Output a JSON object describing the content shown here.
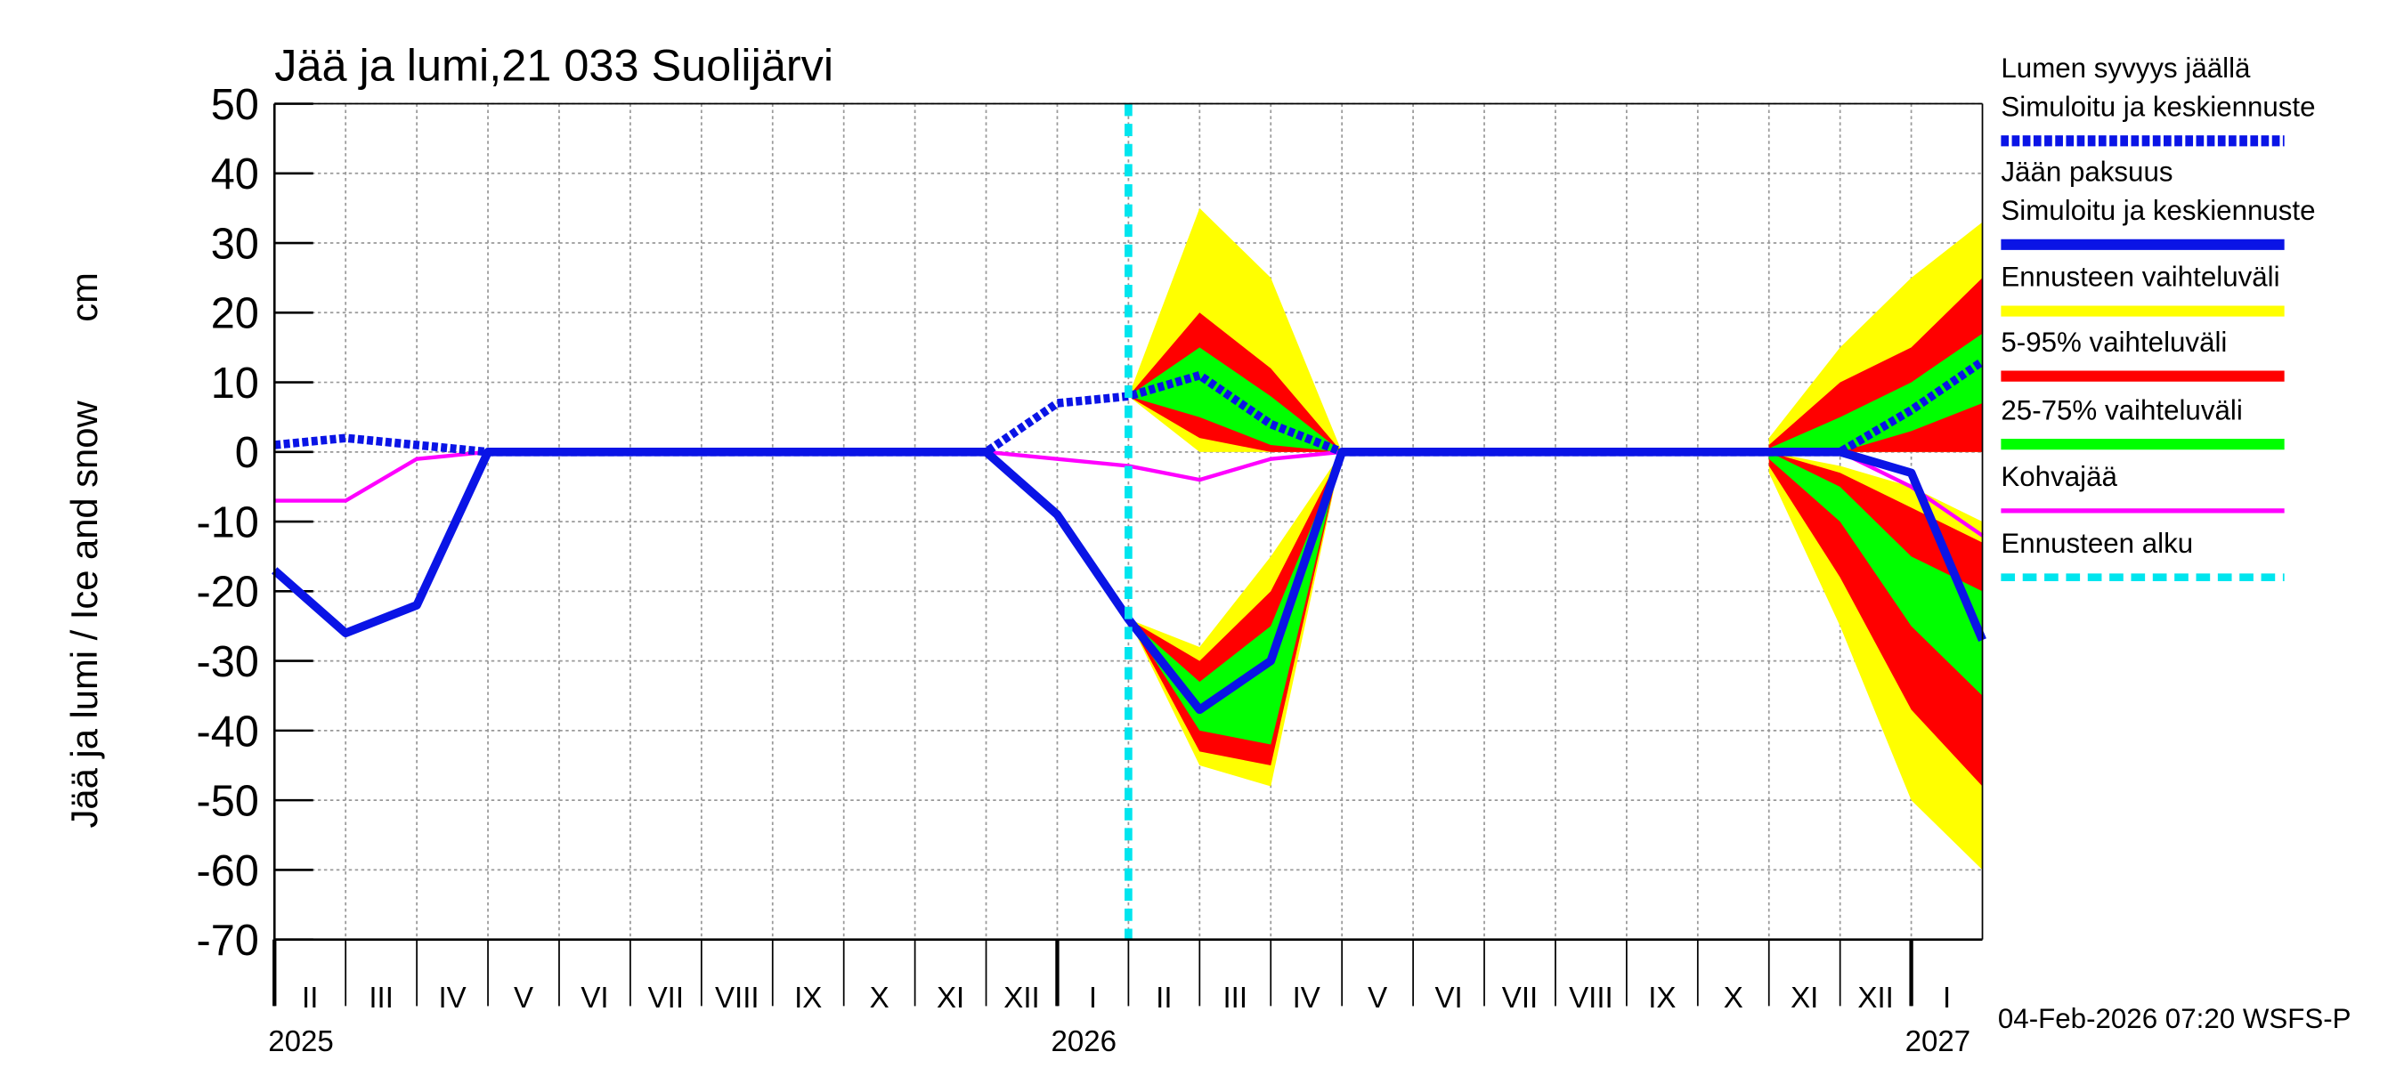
{
  "chart_data": {
    "type": "line",
    "title": "Jää ja lumi,21 033 Suolijärvi",
    "ylabel": "Jää ja lumi / Ice and snow",
    "yunit": "cm",
    "footer": "04-Feb-2026 07:20 WSFS-P",
    "x": [
      "2025-02",
      "2025-03",
      "2025-04",
      "2025-05",
      "2025-06",
      "2025-07",
      "2025-08",
      "2025-09",
      "2025-10",
      "2025-11",
      "2025-12",
      "2026-01",
      "2026-02",
      "2026-03",
      "2026-04",
      "2026-05",
      "2026-06",
      "2026-07",
      "2026-08",
      "2026-09",
      "2026-10",
      "2026-11",
      "2026-12",
      "2027-01",
      "2027-02"
    ],
    "xlim": [
      "2025-02",
      "2027-02"
    ],
    "month_labels": [
      "II",
      "III",
      "IV",
      "V",
      "VI",
      "VII",
      "VIII",
      "IX",
      "X",
      "XI",
      "XII",
      "I",
      "II",
      "III",
      "IV",
      "V",
      "VI",
      "VII",
      "VIII",
      "IX",
      "X",
      "XI",
      "XII",
      "I"
    ],
    "xticks": [
      {
        "value": "2025-02",
        "label": "2025"
      },
      {
        "value": "2026-01",
        "label": "2026"
      },
      {
        "value": "2027-01",
        "label": "2027"
      }
    ],
    "ylim": [
      -70,
      50
    ],
    "yticks": [
      -70,
      -60,
      -50,
      -40,
      -30,
      -20,
      -10,
      0,
      10,
      20,
      30,
      40,
      50
    ],
    "grid": true,
    "series": [
      {
        "name": "Lumen syvyys jäällä",
        "note": "Simuloitu ja keskiennuste",
        "color": "#0a14e6",
        "style": "dashed",
        "values": [
          1,
          2,
          1,
          0,
          0,
          0,
          0,
          0,
          0,
          0,
          0,
          7,
          8,
          11,
          4,
          0,
          0,
          0,
          0,
          0,
          0,
          0,
          0,
          6,
          13
        ]
      },
      {
        "name": "Jään paksuus",
        "note": "Simuloitu ja keskiennuste",
        "color": "#0a14e6",
        "style": "solid",
        "values": [
          -17,
          -26,
          -22,
          0,
          0,
          0,
          0,
          0,
          0,
          0,
          0,
          -9,
          -24,
          -37,
          -30,
          0,
          0,
          0,
          0,
          0,
          0,
          0,
          0,
          -3,
          -27
        ]
      },
      {
        "name": "Kohvajää",
        "color": "#ff00ff",
        "style": "thin",
        "values": [
          -7,
          -7,
          -1,
          0,
          0,
          0,
          0,
          0,
          0,
          0,
          0,
          -1,
          -2,
          -4,
          -1,
          0,
          0,
          0,
          0,
          0,
          0,
          0,
          0,
          -5,
          -12
        ]
      }
    ],
    "bands": [
      {
        "name": "Ennusteen vaihteluväli",
        "color": "#ffff00",
        "snow_low": [
          null,
          null,
          null,
          null,
          null,
          null,
          null,
          null,
          null,
          null,
          null,
          null,
          8,
          0,
          0,
          0,
          null,
          null,
          null,
          null,
          null,
          0,
          0,
          0,
          0
        ],
        "snow_high": [
          null,
          null,
          null,
          null,
          null,
          null,
          null,
          null,
          null,
          null,
          null,
          null,
          8,
          35,
          25,
          0,
          null,
          null,
          null,
          null,
          null,
          2,
          15,
          25,
          33
        ],
        "ice_low": [
          null,
          null,
          null,
          null,
          null,
          null,
          null,
          null,
          null,
          null,
          null,
          null,
          -24,
          -45,
          -48,
          0,
          null,
          null,
          null,
          null,
          null,
          -3,
          -25,
          -50,
          -60
        ],
        "ice_high": [
          null,
          null,
          null,
          null,
          null,
          null,
          null,
          null,
          null,
          null,
          null,
          null,
          -24,
          -28,
          -15,
          0,
          null,
          null,
          null,
          null,
          null,
          0,
          -2,
          -5,
          -10
        ]
      },
      {
        "name": "5-95% vaihteluväli",
        "color": "#ff0000",
        "snow_low": [
          null,
          null,
          null,
          null,
          null,
          null,
          null,
          null,
          null,
          null,
          null,
          null,
          8,
          2,
          0,
          0,
          null,
          null,
          null,
          null,
          null,
          0,
          0,
          0,
          0
        ],
        "snow_high": [
          null,
          null,
          null,
          null,
          null,
          null,
          null,
          null,
          null,
          null,
          null,
          null,
          8,
          20,
          12,
          0,
          null,
          null,
          null,
          null,
          null,
          1,
          10,
          15,
          25
        ],
        "ice_low": [
          null,
          null,
          null,
          null,
          null,
          null,
          null,
          null,
          null,
          null,
          null,
          null,
          -24,
          -43,
          -45,
          0,
          null,
          null,
          null,
          null,
          null,
          -2,
          -18,
          -37,
          -48
        ],
        "ice_high": [
          null,
          null,
          null,
          null,
          null,
          null,
          null,
          null,
          null,
          null,
          null,
          null,
          -24,
          -30,
          -20,
          0,
          null,
          null,
          null,
          null,
          null,
          0,
          -3,
          -8,
          -13
        ]
      },
      {
        "name": "25-75% vaihteluväli",
        "color": "#00ff00",
        "snow_low": [
          null,
          null,
          null,
          null,
          null,
          null,
          null,
          null,
          null,
          null,
          null,
          null,
          8,
          5,
          1,
          0,
          null,
          null,
          null,
          null,
          null,
          0,
          0,
          3,
          7
        ],
        "snow_high": [
          null,
          null,
          null,
          null,
          null,
          null,
          null,
          null,
          null,
          null,
          null,
          null,
          8,
          15,
          8,
          0,
          null,
          null,
          null,
          null,
          null,
          0.5,
          5,
          10,
          17
        ],
        "ice_low": [
          null,
          null,
          null,
          null,
          null,
          null,
          null,
          null,
          null,
          null,
          null,
          null,
          -24,
          -40,
          -42,
          0,
          null,
          null,
          null,
          null,
          null,
          -1,
          -10,
          -25,
          -35
        ],
        "ice_high": [
          null,
          null,
          null,
          null,
          null,
          null,
          null,
          null,
          null,
          null,
          null,
          null,
          -24,
          -33,
          -25,
          0,
          null,
          null,
          null,
          null,
          null,
          0,
          -5,
          -15,
          -20
        ]
      }
    ],
    "forecast_start": {
      "label": "Ennusteen alku",
      "x": "2026-02",
      "color": "#00e5ee"
    }
  }
}
